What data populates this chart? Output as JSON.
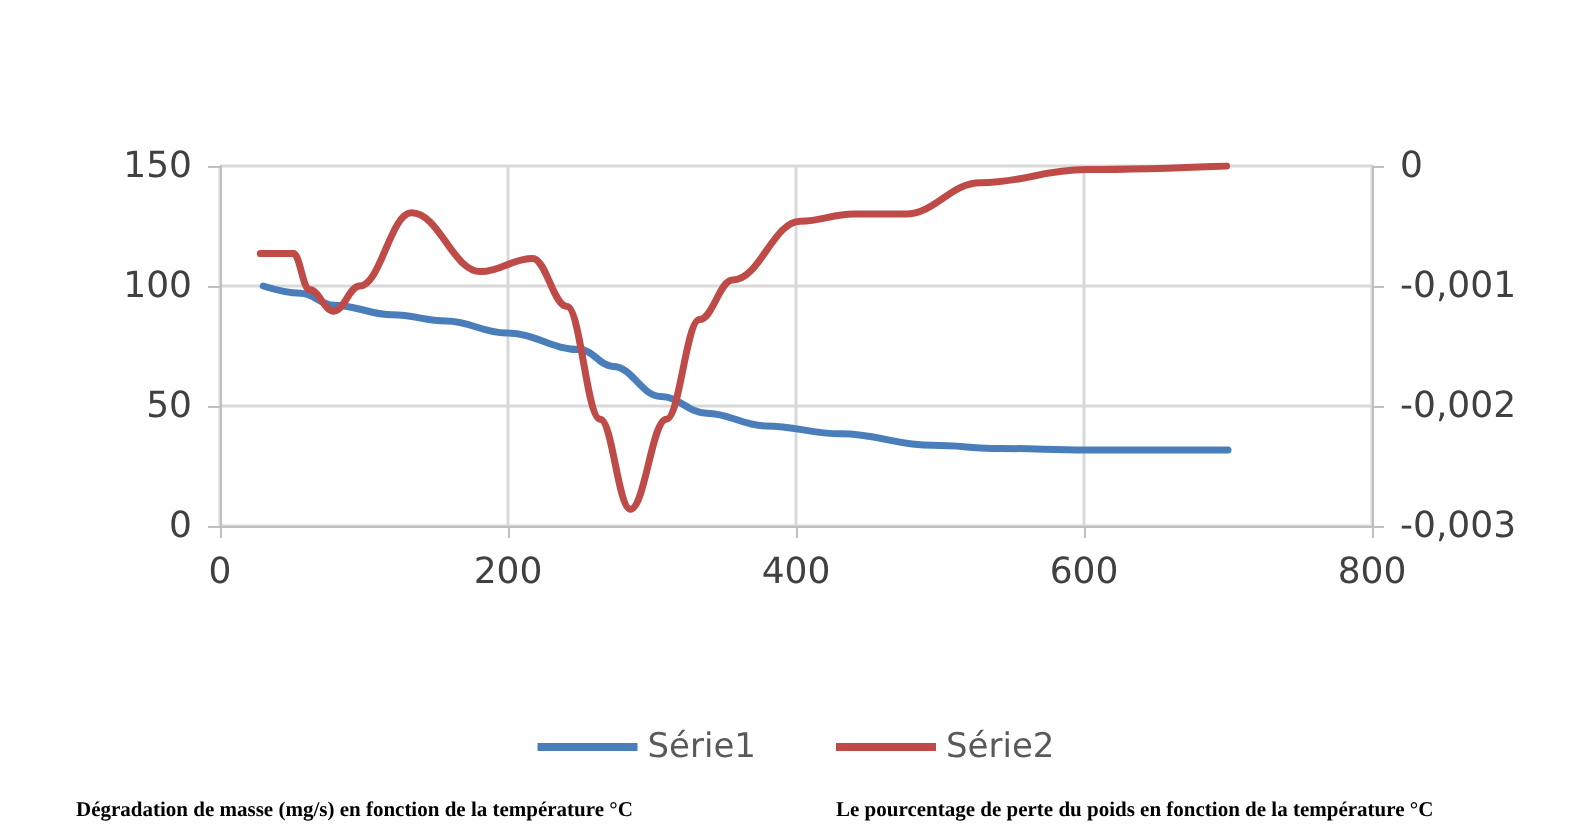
{
  "chart_data": {
    "type": "line",
    "x": [
      30,
      56,
      79,
      120,
      157,
      199,
      250,
      273,
      306,
      338,
      379,
      431,
      495,
      542,
      601,
      700
    ],
    "series": [
      {
        "name": "Série1",
        "color": "#4a7ebb",
        "values": [
          100,
          97,
          92,
          88,
          85.4,
          80.4,
          73.5,
          66.5,
          54,
          47,
          41.7,
          38.4,
          33.6,
          32.3,
          31.7,
          31.7
        ]
      },
      {
        "name": "Série2",
        "color": "#be4b48",
        "axis": "y2",
        "x": [
          28,
          51,
          62,
          79,
          97,
          133,
          181,
          217,
          241,
          264,
          285,
          310,
          333,
          356,
          403,
          440,
          476,
          528,
          601,
          699
        ],
        "values": [
          -0.00073,
          -0.00073,
          -0.00103,
          -0.00121,
          -0.001,
          -0.00039,
          -0.00088,
          -0.00077,
          -0.00117,
          -0.00211,
          -0.00286,
          -0.00211,
          -0.00128,
          -0.00095,
          -0.00046,
          -0.0004,
          -0.0004,
          -0.00014,
          -3e-05,
          0
        ]
      }
    ],
    "xlim": [
      0,
      800
    ],
    "xticks": [
      0,
      200,
      400,
      600,
      800
    ],
    "ylim": [
      0,
      150
    ],
    "yticks": [
      0,
      50,
      100,
      150
    ],
    "y2lim": [
      -0.003,
      0
    ],
    "y2ticks": [
      {
        "value": -0.003,
        "label": "-0,003"
      },
      {
        "value": -0.002,
        "label": "-0,002"
      },
      {
        "value": -0.001,
        "label": "-0,001"
      },
      0
    ],
    "grid": true,
    "legend": "bottom",
    "marker": "none",
    "line_style": "solid",
    "annotations": [
      "Dégradation de masse (mg/s) en fonction de la température °C",
      "Le pourcentage de perte du poids en fonction de la température °C"
    ]
  }
}
